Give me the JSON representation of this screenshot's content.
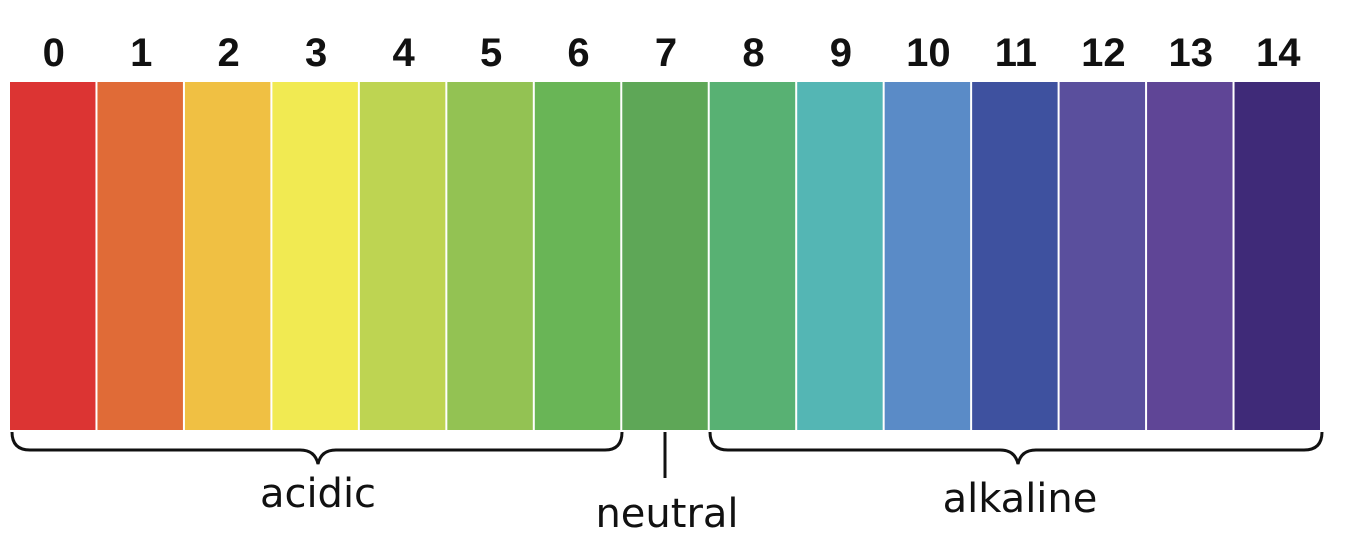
{
  "levels": [
    0,
    1,
    2,
    3,
    4,
    5,
    6,
    7,
    8,
    9,
    10,
    11,
    12,
    13,
    14
  ],
  "colors": [
    "#dc3433",
    "#e06b37",
    "#f0c043",
    "#f1ea52",
    "#bed452",
    "#93c253",
    "#69b556",
    "#5ea757",
    "#58b173",
    "#54b6b4",
    "#5a8bc7",
    "#3e519f",
    "#5a4f9d",
    "#5f4596",
    "#3f2a78"
  ],
  "groups": {
    "acidic": "acidic",
    "neutral": "neutral",
    "alkaline": "alkaline"
  }
}
